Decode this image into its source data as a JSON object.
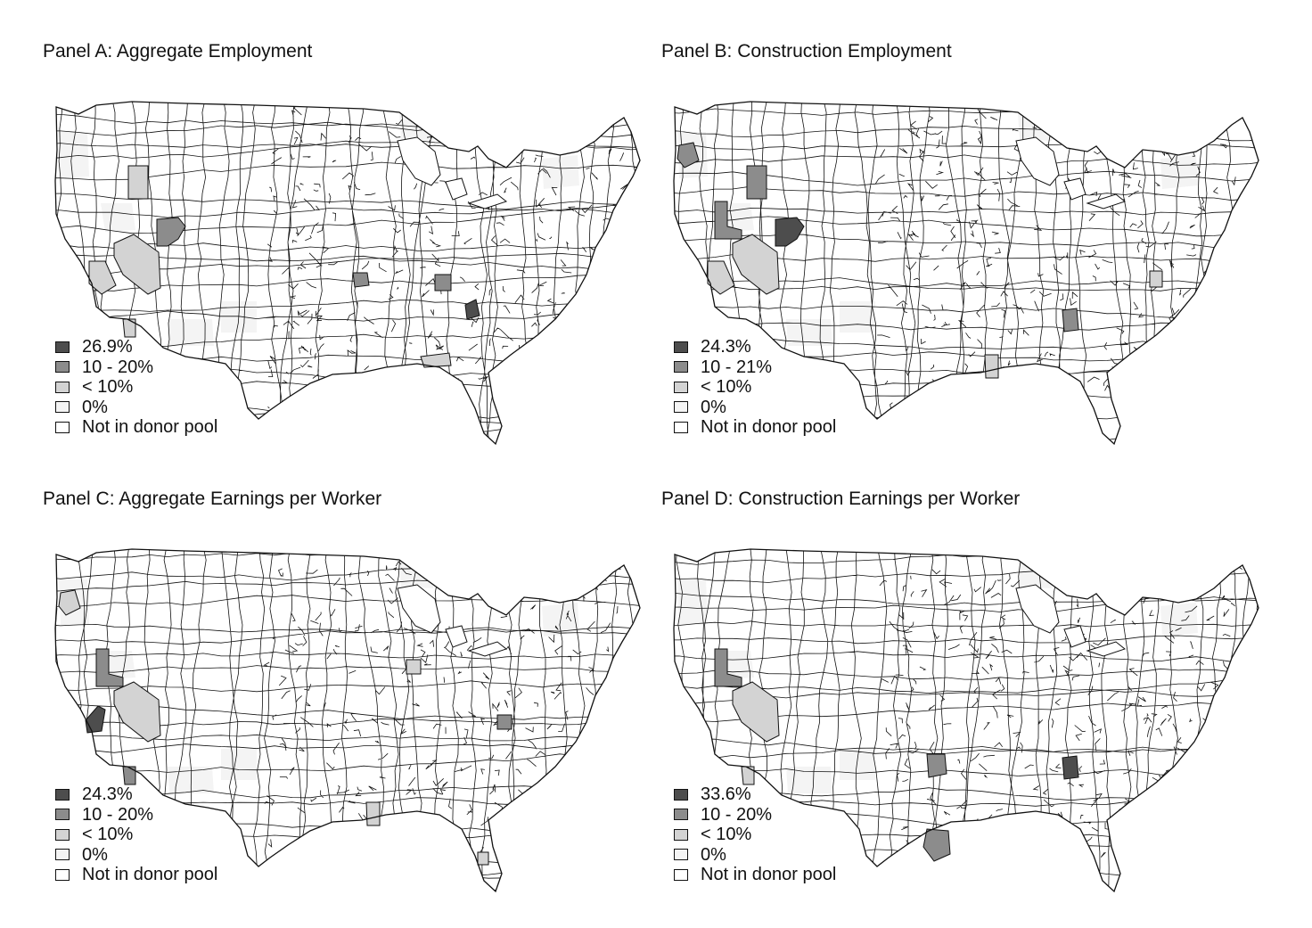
{
  "colors": {
    "treated_max": "#4d4d4d",
    "range_10_20": "#8c8c8c",
    "under_10": "#d3d3d3",
    "zero": "#f4f4f4",
    "not_in_pool": "#ffffff",
    "border": "#111111"
  },
  "panels": [
    {
      "id": "a",
      "title": "Panel A: Aggregate Employment",
      "legend": [
        "26.9%",
        "10 - 20%",
        "< 10%",
        "0%",
        "Not in donor pool"
      ],
      "highlights": [
        {
          "shape": "utah-nw",
          "class": "range_10_20"
        },
        {
          "shape": "idaho-mid",
          "class": "under_10"
        },
        {
          "shape": "nevada-south",
          "class": "under_10"
        },
        {
          "shape": "calif-central",
          "class": "under_10"
        },
        {
          "shape": "kansas-small",
          "class": "range_10_20"
        },
        {
          "shape": "illinois-south",
          "class": "range_10_20"
        },
        {
          "shape": "tenn-east",
          "class": "treated_max"
        },
        {
          "shape": "gulf-louisiana",
          "class": "under_10"
        },
        {
          "shape": "socal-coast",
          "class": "under_10"
        }
      ]
    },
    {
      "id": "b",
      "title": "Panel B: Construction Employment",
      "legend": [
        "24.3%",
        "10 - 21%",
        "< 10%",
        "0%",
        "Not in donor pool"
      ],
      "highlights": [
        {
          "shape": "wash-west",
          "class": "range_10_20"
        },
        {
          "shape": "idaho-mid",
          "class": "range_10_20"
        },
        {
          "shape": "nevada-north",
          "class": "range_10_20"
        },
        {
          "shape": "utah-nw",
          "class": "treated_max"
        },
        {
          "shape": "nevada-south",
          "class": "under_10"
        },
        {
          "shape": "calif-central",
          "class": "under_10"
        },
        {
          "shape": "georgia-north",
          "class": "range_10_20"
        },
        {
          "shape": "gulf-alabama",
          "class": "under_10"
        },
        {
          "shape": "virginia-coast",
          "class": "under_10"
        }
      ]
    },
    {
      "id": "c",
      "title": "Panel C: Aggregate Earnings per Worker",
      "legend": [
        "24.3%",
        "10 - 20%",
        "< 10%",
        "0%",
        "Not in donor pool"
      ],
      "highlights": [
        {
          "shape": "wash-west",
          "class": "under_10"
        },
        {
          "shape": "nevada-north",
          "class": "range_10_20"
        },
        {
          "shape": "calif-reno",
          "class": "treated_max"
        },
        {
          "shape": "nevada-south",
          "class": "under_10"
        },
        {
          "shape": "socal-coast",
          "class": "range_10_20"
        },
        {
          "shape": "virginia-west",
          "class": "range_10_20"
        },
        {
          "shape": "illinois-chicago",
          "class": "under_10"
        },
        {
          "shape": "gulf-alabama",
          "class": "under_10"
        },
        {
          "shape": "florida-mid",
          "class": "under_10"
        }
      ]
    },
    {
      "id": "d",
      "title": "Panel D: Construction Earnings per Worker",
      "legend": [
        "33.6%",
        "10 - 20%",
        "< 10%",
        "0%",
        "Not in donor pool"
      ],
      "highlights": [
        {
          "shape": "nevada-north",
          "class": "range_10_20"
        },
        {
          "shape": "nevada-south",
          "class": "under_10"
        },
        {
          "shape": "socal-coast",
          "class": "under_10"
        },
        {
          "shape": "texas-central",
          "class": "range_10_20"
        },
        {
          "shape": "texas-south",
          "class": "range_10_20"
        },
        {
          "shape": "georgia-north",
          "class": "treated_max"
        }
      ]
    }
  ]
}
